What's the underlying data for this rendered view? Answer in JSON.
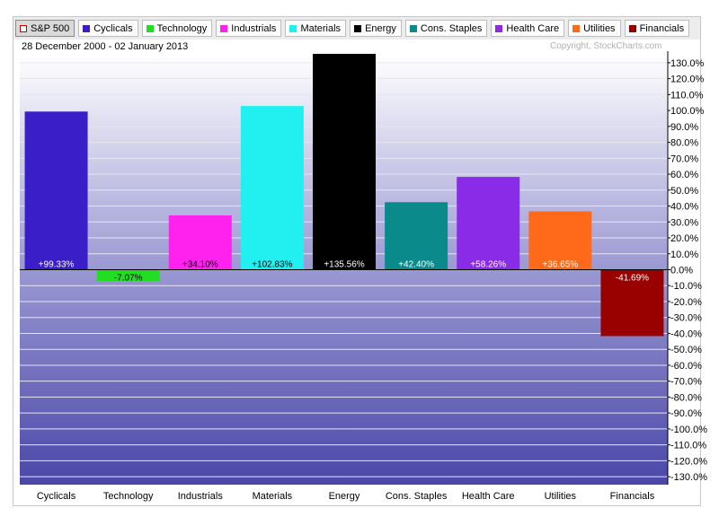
{
  "legend": [
    {
      "label": "S&P 500",
      "color": "#cc0000",
      "selected": true,
      "hollow": true
    },
    {
      "label": "Cyclicals",
      "color": "#3a1ec8"
    },
    {
      "label": "Technology",
      "color": "#22dd22"
    },
    {
      "label": "Industrials",
      "color": "#ff22ee"
    },
    {
      "label": "Materials",
      "color": "#22f0f0"
    },
    {
      "label": "Energy",
      "color": "#000000"
    },
    {
      "label": "Cons. Staples",
      "color": "#0a8a8a"
    },
    {
      "label": "Health Care",
      "color": "#8a2be8"
    },
    {
      "label": "Utilities",
      "color": "#ff6a1a"
    },
    {
      "label": "Financials",
      "color": "#990000"
    }
  ],
  "period_label": "28 December 2000 - 02 January 2013",
  "copyright": "Copyright, StockCharts.com",
  "chart_data": {
    "type": "bar",
    "title": "",
    "xlabel": "",
    "ylabel": "",
    "categories": [
      "Cyclicals",
      "Technology",
      "Industrials",
      "Materials",
      "Energy",
      "Cons. Staples",
      "Health Care",
      "Utilities",
      "Financials"
    ],
    "values": [
      99.33,
      -7.07,
      34.1,
      102.83,
      135.56,
      42.4,
      58.26,
      36.65,
      -41.69
    ],
    "value_labels": [
      "+99.33%",
      "-7.07%",
      "+34.10%",
      "+102.83%",
      "+135.56%",
      "+42.40%",
      "+58.26%",
      "+36.65%",
      "-41.69%"
    ],
    "label_colors": [
      "#ffffff",
      "#000000",
      "#000000",
      "#000000",
      "#ffffff",
      "#ffffff",
      "#ffffff",
      "#ffffff",
      "#ffffff"
    ],
    "colors": [
      "#3a1ec8",
      "#22dd22",
      "#ff22ee",
      "#22f0f0",
      "#000000",
      "#0a8a8a",
      "#8a2be8",
      "#ff6a1a",
      "#990000"
    ],
    "ylim": [
      -135,
      135
    ],
    "yticks": [
      130,
      120,
      110,
      100,
      90,
      80,
      70,
      60,
      50,
      40,
      30,
      20,
      10,
      0,
      -10,
      -20,
      -30,
      -40,
      -50,
      -60,
      -70,
      -80,
      -90,
      -100,
      -110,
      -120,
      -130
    ],
    "ytick_labels": [
      "130.0%",
      "120.0%",
      "110.0%",
      "100.0%",
      "90.0%",
      "80.0%",
      "70.0%",
      "60.0%",
      "50.0%",
      "40.0%",
      "30.0%",
      "20.0%",
      "10.0%",
      "0.0%",
      "-10.0%",
      "-20.0%",
      "-30.0%",
      "-40.0%",
      "-50.0%",
      "-60.0%",
      "-70.0%",
      "-80.0%",
      "-90.0%",
      "-100.0%",
      "-110.0%",
      "-120.0%",
      "-130.0%"
    ],
    "grid": true,
    "y_axis_side": "right",
    "background_gradient": [
      "#ffffff",
      "#9a98d2",
      "#4a47a8"
    ]
  }
}
